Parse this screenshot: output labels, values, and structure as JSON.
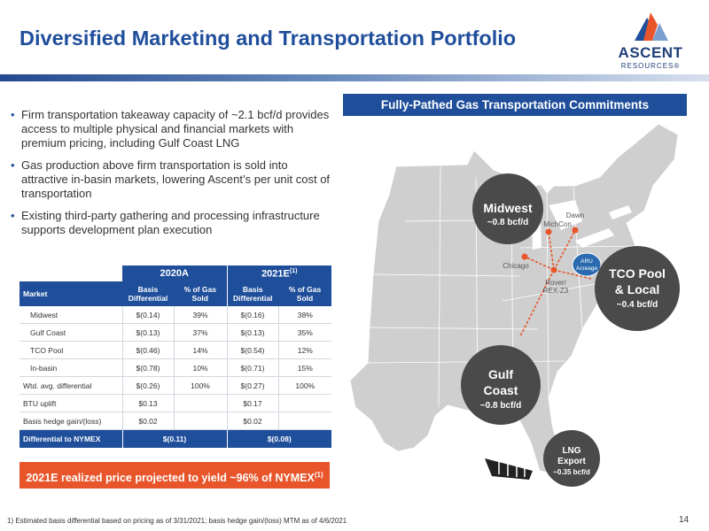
{
  "title": "Diversified Marketing and Transportation Portfolio",
  "logo": {
    "word": "ASCENT",
    "sub": "RESOURCES®",
    "colors": [
      "#e8552a",
      "#1f4e9b",
      "#7ba0d0"
    ]
  },
  "bullets": [
    "Firm transportation takeaway capacity of ~2.1 bcf/d provides access to multiple physical and financial markets with premium pricing, including Gulf Coast LNG",
    "Gas production above firm transportation is sold into attractive in-basin markets, lowering Ascent’s per unit cost of transportation",
    "Existing third-party gathering and processing infrastructure supports development plan execution"
  ],
  "table": {
    "year_2020": "2020A",
    "year_2021": "2021E",
    "year_2021_sup": "(1)",
    "col_market": "Market",
    "col_basis_1": "Basis",
    "col_basis_2": "Differential",
    "col_pct_1": "% of Gas",
    "col_pct_2": "Sold",
    "rows": [
      {
        "market": "Midwest",
        "b20": "$(0.14)",
        "p20": "39%",
        "b21": "$(0.16)",
        "p21": "38%"
      },
      {
        "market": "Gulf Coast",
        "b20": "$(0.13)",
        "p20": "37%",
        "b21": "$(0.13)",
        "p21": "35%"
      },
      {
        "market": "TCO Pool",
        "b20": "$(0.46)",
        "p20": "14%",
        "b21": "$(0.54)",
        "p21": "12%"
      },
      {
        "market": "In-basin",
        "b20": "$(0.78)",
        "p20": "10%",
        "b21": "$(0.71)",
        "p21": "15%"
      },
      {
        "market": "Wtd. avg. differential",
        "b20": "$(0.26)",
        "p20": "100%",
        "b21": "$(0.27)",
        "p21": "100%"
      },
      {
        "market": "BTU uplift",
        "b20": "$0.13",
        "p20": "",
        "b21": "$0.17",
        "p21": ""
      },
      {
        "market": "Basis hedge gain/(loss)",
        "b20": "$0.02",
        "p20": "",
        "b21": "$0.02",
        "p21": ""
      }
    ],
    "footer_label": "Differential to NYMEX",
    "footer_2020": "$(0.11)",
    "footer_2021": "$(0.08)"
  },
  "callout": {
    "text": "2021E realized price projected to yield ~96% of NYMEX",
    "sup": "(1)"
  },
  "map": {
    "header": "Fully-Pathed Gas Transportation Commitments",
    "midwest": {
      "name": "Midwest",
      "value": "~0.8 bcf/d"
    },
    "tco": {
      "line1": "TCO Pool",
      "line2": "& Local",
      "value": "~0.4 bcf/d"
    },
    "gulf": {
      "line1": "Gulf",
      "line2": "Coast",
      "value": "~0.8 bcf/d"
    },
    "lng": {
      "line1": "LNG",
      "line2": "Export",
      "value": "~0.35 bcf/d"
    },
    "aru": {
      "line1": "ARU",
      "line2": "Acreage"
    },
    "hubs": {
      "dawn": "Dawn",
      "michcon": "MichCon",
      "chicago": "Chicago",
      "rover_1": "Rover/",
      "rover_2": "REX-Z3"
    },
    "colors": {
      "bubble": "#4a4a4a",
      "land": "#cfcfcf",
      "hub": "#e8552a",
      "aru": "#2a6bb0"
    }
  },
  "footnote": "1) Estimated basis differential based on pricing as of 3/31/2021; basis hedge gain/(loss) MTM as of 4/6/2021",
  "page_number": "14"
}
